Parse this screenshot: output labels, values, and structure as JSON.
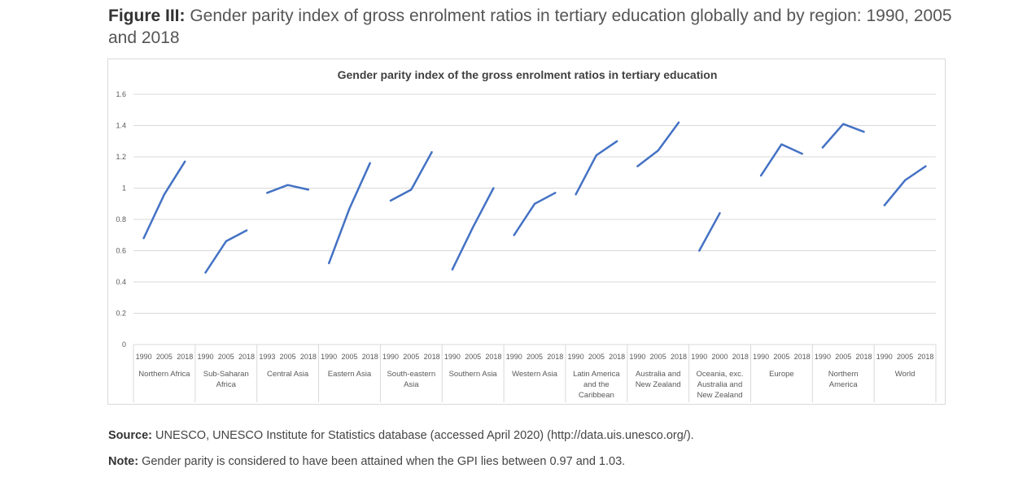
{
  "figure": {
    "label": "Figure III:",
    "caption": "Gender parity index of gross enrolment ratios in tertiary education globally and by region: 1990, 2005 and 2018"
  },
  "chart_data": {
    "type": "line",
    "title": "Gender parity index of the gross enrolment ratios in tertiary education",
    "ylim": [
      0,
      1.6
    ],
    "yticks": [
      "0",
      "0.2",
      "0.4",
      "0.6",
      "0.8",
      "1",
      "1.2",
      "1.4",
      "1.6"
    ],
    "grid": true,
    "line_color": "#4472c4",
    "groups": [
      {
        "label": [
          "Northern Africa"
        ],
        "years": [
          "1990",
          "2005",
          "2018"
        ],
        "values": [
          0.68,
          0.96,
          1.17
        ]
      },
      {
        "label": [
          "Sub-Saharan",
          "Africa"
        ],
        "years": [
          "1990",
          "2005",
          "2018"
        ],
        "values": [
          0.46,
          0.66,
          0.73
        ]
      },
      {
        "label": [
          "Central Asia"
        ],
        "years": [
          "1993",
          "2005",
          "2018"
        ],
        "values": [
          0.97,
          1.02,
          0.99
        ]
      },
      {
        "label": [
          "Eastern Asia"
        ],
        "years": [
          "1990",
          "2005",
          "2018"
        ],
        "values": [
          0.52,
          0.87,
          1.16
        ]
      },
      {
        "label": [
          "South-eastern",
          "Asia"
        ],
        "years": [
          "1990",
          "2005",
          "2018"
        ],
        "values": [
          0.92,
          0.99,
          1.23
        ]
      },
      {
        "label": [
          "Southern Asia"
        ],
        "years": [
          "1990",
          "2005",
          "2018"
        ],
        "values": [
          0.48,
          0.75,
          1.0
        ]
      },
      {
        "label": [
          "Western Asia"
        ],
        "years": [
          "1990",
          "2005",
          "2018"
        ],
        "values": [
          0.7,
          0.9,
          0.97
        ]
      },
      {
        "label": [
          "Latin America",
          "and the",
          "Caribbean"
        ],
        "years": [
          "1990",
          "2005",
          "2018"
        ],
        "values": [
          0.96,
          1.21,
          1.3
        ]
      },
      {
        "label": [
          "Australia and",
          "New Zealand"
        ],
        "years": [
          "1990",
          "2005",
          "2018"
        ],
        "values": [
          1.14,
          1.24,
          1.42
        ]
      },
      {
        "label": [
          "Oceania, exc.",
          "Australia and",
          "New Zealand"
        ],
        "years": [
          "1990",
          "2000",
          "2018"
        ],
        "values": [
          0.6,
          0.84,
          null
        ]
      },
      {
        "label": [
          "Europe"
        ],
        "years": [
          "1990",
          "2005",
          "2018"
        ],
        "values": [
          1.08,
          1.28,
          1.22
        ]
      },
      {
        "label": [
          "Northern",
          "America"
        ],
        "years": [
          "1990",
          "2005",
          "2018"
        ],
        "values": [
          1.26,
          1.41,
          1.36
        ]
      },
      {
        "label": [
          "World"
        ],
        "years": [
          "1990",
          "2005",
          "2018"
        ],
        "values": [
          0.89,
          1.05,
          1.14
        ]
      }
    ]
  },
  "source": {
    "label": "Source:",
    "text": "UNESCO, UNESCO Institute for Statistics database (accessed April 2020) (http://data.uis.unesco.org/)."
  },
  "note": {
    "label": "Note:",
    "text": "Gender parity is considered to have been attained when the GPI lies between 0.97 and 1.03."
  }
}
